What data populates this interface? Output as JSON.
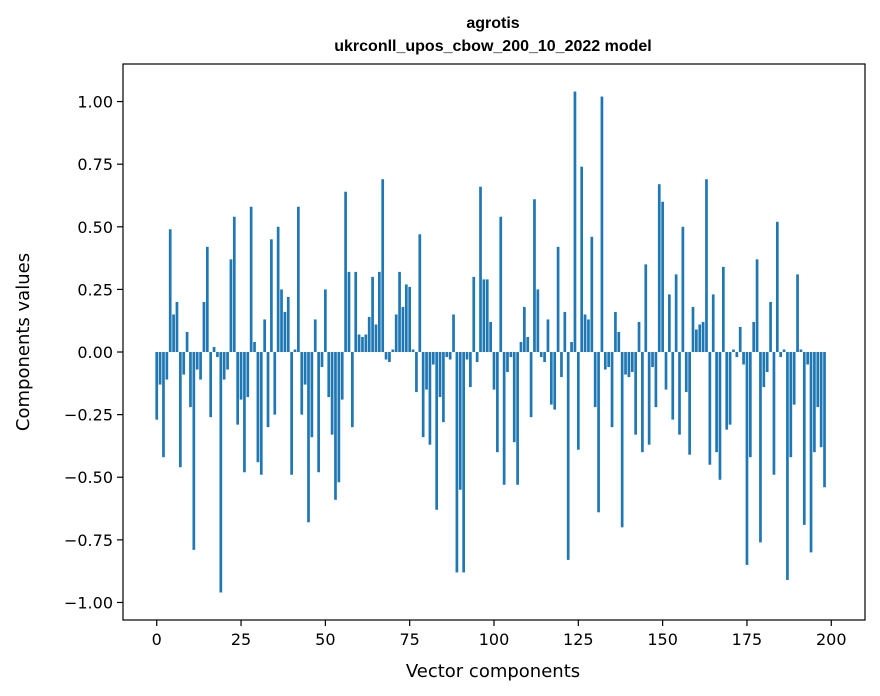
{
  "chart_data": {
    "type": "bar",
    "title": "agrotis",
    "subtitle": "ukrconll_upos_cbow_200_10_2022 model",
    "xlabel": "Vector components",
    "ylabel": "Components values",
    "xlim": [
      -10,
      210
    ],
    "ylim": [
      -1.07,
      1.15
    ],
    "xticks": [
      0,
      25,
      50,
      75,
      100,
      125,
      150,
      175,
      200
    ],
    "yticks": [
      -1.0,
      -0.75,
      -0.5,
      -0.25,
      0.0,
      0.25,
      0.5,
      0.75,
      1.0
    ],
    "ytick_labels": [
      "−1.00",
      "−0.75",
      "−0.50",
      "−0.25",
      "0.00",
      "0.25",
      "0.50",
      "0.75",
      "1.00"
    ],
    "grid": false,
    "bar_color": "#1f77b4",
    "values": [
      -0.27,
      -0.13,
      -0.42,
      -0.11,
      0.49,
      0.15,
      0.2,
      -0.46,
      -0.09,
      0.08,
      -0.22,
      -0.79,
      -0.07,
      -0.11,
      0.2,
      0.42,
      -0.26,
      0.02,
      -0.02,
      -0.96,
      -0.11,
      -0.07,
      0.37,
      0.54,
      -0.29,
      -0.19,
      -0.48,
      -0.18,
      0.58,
      0.04,
      -0.44,
      -0.49,
      0.13,
      -0.3,
      0.45,
      -0.25,
      0.5,
      0.25,
      0.16,
      0.22,
      -0.49,
      0.01,
      0.58,
      -0.25,
      -0.13,
      -0.68,
      -0.34,
      0.13,
      -0.48,
      -0.06,
      0.25,
      -0.18,
      -0.33,
      -0.59,
      -0.52,
      -0.19,
      0.64,
      0.32,
      -0.3,
      0.32,
      0.07,
      0.06,
      0.07,
      0.14,
      0.3,
      0.11,
      0.32,
      0.69,
      -0.03,
      -0.04,
      0.01,
      0.15,
      0.32,
      0.18,
      0.27,
      0.26,
      0.01,
      -0.16,
      0.47,
      -0.34,
      -0.15,
      -0.37,
      -0.05,
      -0.63,
      -0.18,
      -0.28,
      -0.02,
      -0.03,
      0.15,
      -0.88,
      -0.55,
      -0.88,
      -0.03,
      -0.14,
      0.3,
      -0.04,
      0.66,
      0.29,
      0.29,
      0.12,
      -0.15,
      -0.4,
      0.54,
      -0.53,
      -0.08,
      -0.02,
      -0.36,
      -0.53,
      0.04,
      0.18,
      0.06,
      -0.26,
      0.61,
      0.25,
      -0.02,
      -0.04,
      0.13,
      -0.21,
      -0.23,
      0.42,
      -0.1,
      0.16,
      -0.83,
      0.04,
      1.04,
      -0.39,
      0.74,
      0.15,
      0.13,
      0.46,
      -0.22,
      -0.64,
      1.02,
      -0.07,
      -0.06,
      -0.3,
      0.16,
      0.08,
      -0.7,
      -0.09,
      -0.1,
      -0.08,
      -0.33,
      0.12,
      -0.4,
      0.35,
      -0.37,
      -0.06,
      -0.22,
      0.67,
      0.6,
      -0.15,
      0.23,
      -0.27,
      0.31,
      -0.33,
      0.5,
      -0.16,
      -0.41,
      0.18,
      0.09,
      0.11,
      0.12,
      0.69,
      -0.45,
      0.23,
      -0.4,
      -0.51,
      0.34,
      -0.31,
      -0.29,
      0.01,
      -0.02,
      0.1,
      -0.05,
      -0.85,
      -0.42,
      0.12,
      0.37,
      -0.76,
      -0.14,
      -0.08,
      0.2,
      -0.49,
      0.52,
      -0.02,
      0.01,
      -0.91,
      -0.42,
      -0.21,
      0.31,
      0.01,
      -0.69,
      -0.05,
      -0.8,
      -0.4,
      -0.22,
      -0.38,
      -0.54
    ]
  }
}
